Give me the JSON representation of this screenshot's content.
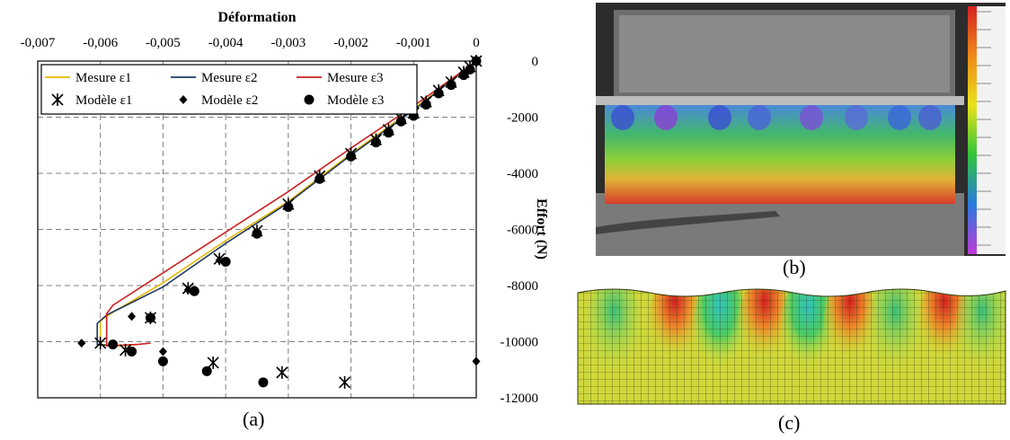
{
  "chart_data": {
    "type": "scatter",
    "xlabel": "Déformation",
    "ylabel": "Effort (N)",
    "xlim": [
      -0.007,
      0
    ],
    "ylim": [
      -12000,
      0
    ],
    "x_ticks": [
      "-0,007",
      "-0,006",
      "-0,005",
      "-0,004",
      "-0,003",
      "-0,002",
      "-0,001",
      "0"
    ],
    "y_ticks": [
      "0",
      "-2000",
      "-4000",
      "-6000",
      "-8000",
      "-10000",
      "-12000"
    ],
    "x_tick_values": [
      -0.007,
      -0.006,
      -0.005,
      -0.004,
      -0.003,
      -0.002,
      -0.001,
      0
    ],
    "y_tick_values": [
      0,
      -2000,
      -4000,
      -6000,
      -8000,
      -10000,
      -12000
    ],
    "grid": true,
    "legend_position": "top",
    "series": [
      {
        "name": "Mesure ε1",
        "kind": "line",
        "color": "#e6b800",
        "points": [
          [
            0,
            0
          ],
          [
            -0.0004,
            -700
          ],
          [
            -0.001,
            -1700
          ],
          [
            -0.002,
            -3300
          ],
          [
            -0.003,
            -5000
          ],
          [
            -0.004,
            -6400
          ],
          [
            -0.005,
            -7900
          ],
          [
            -0.0058,
            -8950
          ],
          [
            -0.006,
            -9250
          ],
          [
            -0.006,
            -10100
          ],
          [
            -0.0057,
            -10150
          ],
          [
            -0.0054,
            -10100
          ]
        ]
      },
      {
        "name": "Mesure ε2",
        "kind": "line",
        "color": "#1f3a5f",
        "points": [
          [
            0,
            0
          ],
          [
            -0.0004,
            -700
          ],
          [
            -0.001,
            -1750
          ],
          [
            -0.002,
            -3350
          ],
          [
            -0.003,
            -5050
          ],
          [
            -0.004,
            -6500
          ],
          [
            -0.005,
            -8050
          ],
          [
            -0.0059,
            -9050
          ],
          [
            -0.00605,
            -9350
          ],
          [
            -0.00605,
            -10100
          ],
          [
            -0.0058,
            -10150
          ]
        ]
      },
      {
        "name": "Mesure ε3",
        "kind": "line",
        "color": "#cc2222",
        "points": [
          [
            0,
            0
          ],
          [
            -0.0004,
            -650
          ],
          [
            -0.001,
            -1600
          ],
          [
            -0.002,
            -3100
          ],
          [
            -0.003,
            -4650
          ],
          [
            -0.004,
            -6100
          ],
          [
            -0.005,
            -7550
          ],
          [
            -0.0058,
            -8700
          ],
          [
            -0.0059,
            -9000
          ],
          [
            -0.0059,
            -10150
          ],
          [
            -0.0054,
            -10100
          ],
          [
            -0.0052,
            -10050
          ]
        ]
      },
      {
        "name": "Modèle ε1",
        "kind": "marker",
        "marker": "asterisk",
        "color": "#000000",
        "points": [
          [
            0,
            0
          ],
          [
            -0.0001,
            -200
          ],
          [
            -0.0002,
            -400
          ],
          [
            -0.0004,
            -750
          ],
          [
            -0.0006,
            -1050
          ],
          [
            -0.0008,
            -1450
          ],
          [
            -0.001,
            -1850
          ],
          [
            -0.0012,
            -2050
          ],
          [
            -0.0014,
            -2450
          ],
          [
            -0.0016,
            -2800
          ],
          [
            -0.002,
            -3300
          ],
          [
            -0.0025,
            -4100
          ],
          [
            -0.003,
            -5100
          ],
          [
            -0.0035,
            -6050
          ],
          [
            -0.0041,
            -7050
          ],
          [
            -0.0046,
            -8100
          ],
          [
            -0.0052,
            -9150
          ],
          [
            -0.006,
            -10050
          ],
          [
            -0.0056,
            -10300
          ],
          [
            -0.0042,
            -10750
          ],
          [
            -0.0031,
            -11100
          ],
          [
            -0.0021,
            -11450
          ]
        ]
      },
      {
        "name": "Modèle ε2",
        "kind": "marker",
        "marker": "diamond",
        "color": "#000000",
        "points": [
          [
            0,
            0
          ],
          [
            -0.0001,
            -250
          ],
          [
            -0.0002,
            -450
          ],
          [
            -0.0004,
            -800
          ],
          [
            -0.0006,
            -1100
          ],
          [
            -0.0008,
            -1500
          ],
          [
            -0.001,
            -1900
          ],
          [
            -0.0012,
            -2100
          ],
          [
            -0.0014,
            -2500
          ],
          [
            -0.0016,
            -2850
          ],
          [
            -0.002,
            -3350
          ],
          [
            -0.0025,
            -4150
          ],
          [
            -0.003,
            -5150
          ],
          [
            -0.0035,
            -6100
          ],
          [
            -0.0041,
            -7100
          ],
          [
            -0.0046,
            -8150
          ],
          [
            -0.0055,
            -9100
          ],
          [
            -0.0063,
            -10050
          ],
          [
            -0.005,
            -10350
          ],
          [
            -0.0,
            -10700
          ]
        ]
      },
      {
        "name": "Modèle ε3",
        "kind": "marker",
        "marker": "circle",
        "color": "#000000",
        "points": [
          [
            0,
            0
          ],
          [
            -0.0001,
            -300
          ],
          [
            -0.0002,
            -500
          ],
          [
            -0.0004,
            -850
          ],
          [
            -0.0006,
            -1150
          ],
          [
            -0.0008,
            -1550
          ],
          [
            -0.001,
            -1950
          ],
          [
            -0.0012,
            -2150
          ],
          [
            -0.0014,
            -2550
          ],
          [
            -0.0016,
            -2900
          ],
          [
            -0.002,
            -3400
          ],
          [
            -0.0025,
            -4200
          ],
          [
            -0.003,
            -5200
          ],
          [
            -0.0035,
            -6150
          ],
          [
            -0.004,
            -7150
          ],
          [
            -0.0045,
            -8200
          ],
          [
            -0.0052,
            -9150
          ],
          [
            -0.0058,
            -10100
          ],
          [
            -0.0055,
            -10350
          ],
          [
            -0.005,
            -10700
          ],
          [
            -0.0043,
            -11050
          ],
          [
            -0.0034,
            -11450
          ]
        ]
      }
    ]
  },
  "panels": {
    "a": "(a)",
    "b": "(b)",
    "c": "(c)"
  },
  "colors": {
    "grid": "#7f7f7f",
    "dic_background": "#2c2c2c"
  }
}
